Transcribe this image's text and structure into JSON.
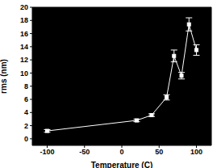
{
  "chart_data": {
    "type": "line",
    "x_label": "Temperature (C)",
    "y_label": "rms (nm)",
    "x": [
      -100,
      20,
      40,
      60,
      70,
      80,
      90,
      100
    ],
    "values": [
      1.2,
      2.8,
      3.6,
      6.3,
      12.6,
      9.6,
      17.4,
      13.5
    ],
    "errors": [
      0.2,
      0.2,
      0.2,
      0.4,
      0.9,
      0.5,
      1.0,
      0.8
    ],
    "color": "#ffffff",
    "marker": "square",
    "xlim": [
      -120,
      120
    ],
    "xticks": [
      -100,
      -50,
      0,
      50,
      100
    ],
    "ylim": [
      -1,
      20
    ],
    "yticks": [
      0,
      2,
      4,
      6,
      8,
      10,
      12,
      14,
      16,
      18,
      20
    ],
    "grid": false
  }
}
